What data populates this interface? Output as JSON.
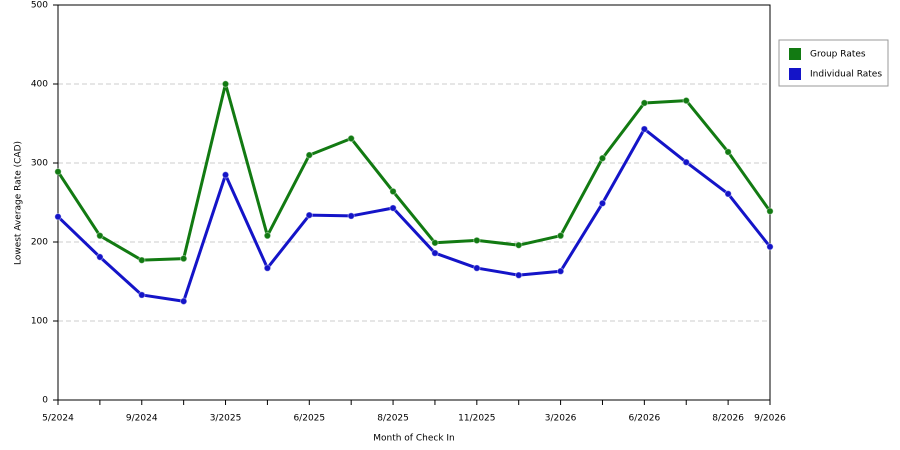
{
  "chart_data": {
    "type": "line",
    "x_label": "Month of Check In",
    "y_label": "Lowest Average Rate (CAD)",
    "categories": [
      "5/2024",
      null,
      "9/2024",
      null,
      "3/2025",
      null,
      "6/2025",
      null,
      "8/2025",
      null,
      "11/2025",
      null,
      "3/2026",
      null,
      "6/2026",
      null,
      "8/2026",
      "9/2026"
    ],
    "series": [
      {
        "name": "Group Rates",
        "color": "#127a12",
        "values": [
          289,
          208,
          177,
          179,
          400,
          208,
          310,
          331,
          264,
          199,
          202,
          196,
          208,
          306,
          376,
          379,
          314,
          239
        ]
      },
      {
        "name": "Individual Rates",
        "color": "#1414c8",
        "values": [
          232,
          181,
          133,
          125,
          285,
          167,
          234,
          233,
          243,
          186,
          167,
          158,
          163,
          249,
          343,
          301,
          261,
          194
        ]
      }
    ],
    "ylim": [
      0,
      500
    ],
    "yticks": [
      0,
      100,
      200,
      300,
      400,
      500
    ],
    "grid": true,
    "legend": "right"
  }
}
